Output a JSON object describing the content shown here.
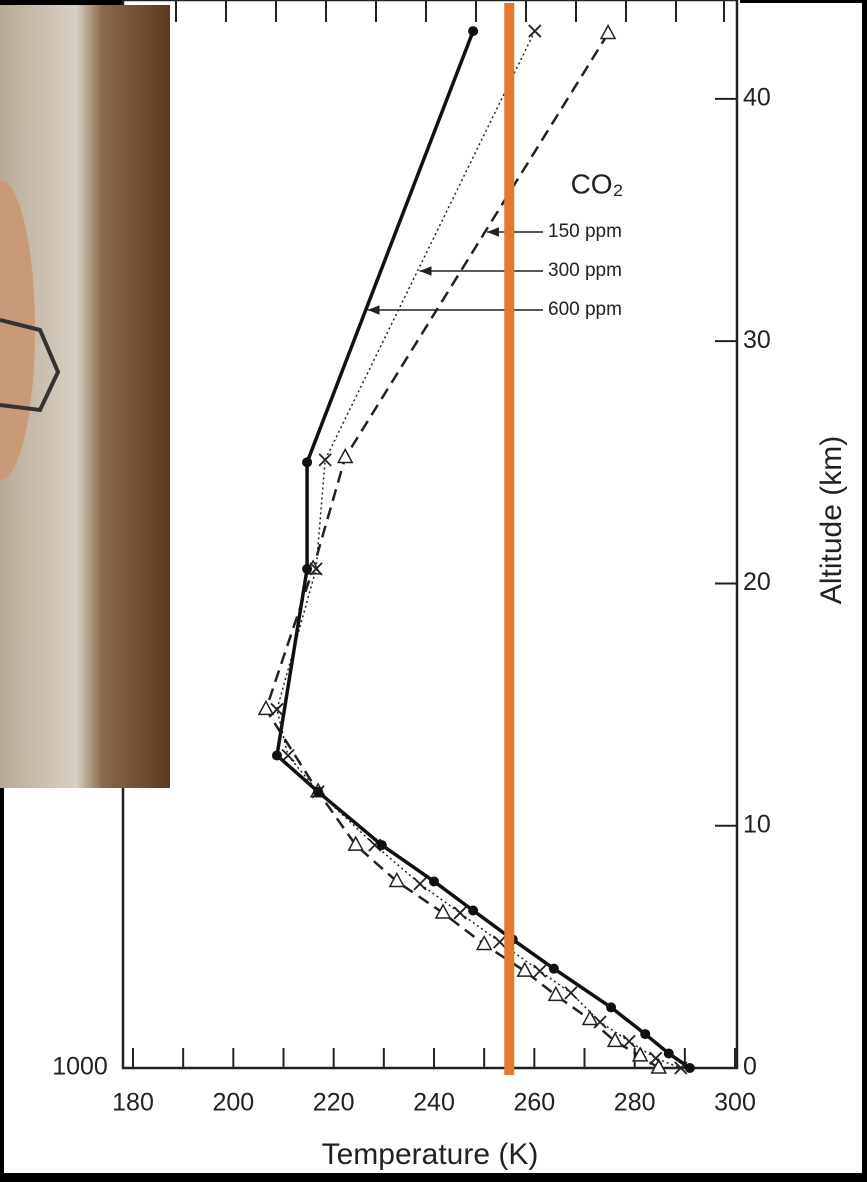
{
  "chart_data": {
    "type": "line",
    "xlabel": "Temperature (K)",
    "ylabel": "Altitude (km)",
    "xlim": [
      180,
      300
    ],
    "xticks": [
      180,
      200,
      220,
      240,
      260,
      280,
      300
    ],
    "ylim": [
      0,
      44
    ],
    "yticks": [
      0,
      10,
      20,
      30,
      40
    ],
    "pressure_label": "1000",
    "legend_title": "CO₂",
    "series": [
      {
        "name": "150 ppm",
        "color": "#222222",
        "x": [
          274.7,
          222.3,
          215.9,
          206.5,
          216.9,
          224.4,
          232.6,
          241.8,
          250.0,
          258.1,
          264.3,
          271.1,
          276.1,
          281.1,
          284.8
        ],
        "values": [
          42.7,
          25.2,
          20.6,
          14.8,
          11.4,
          9.2,
          7.7,
          6.4,
          5.1,
          4.0,
          3.0,
          2.0,
          1.1,
          0.5,
          0
        ]
      },
      {
        "name": "300 ppm",
        "color": "#222222",
        "x": [
          260.1,
          218.3,
          216.5,
          208.7,
          210.9,
          216.9,
          228.2,
          237.2,
          245.2,
          253.1,
          261.1,
          267.3,
          273.1,
          278.9,
          284.2,
          289.2
        ],
        "values": [
          42.8,
          25.1,
          20.6,
          14.8,
          12.9,
          11.4,
          9.2,
          7.6,
          6.4,
          5.2,
          4.0,
          3.1,
          1.9,
          1.1,
          0.4,
          0
        ]
      },
      {
        "name": "600 ppm",
        "color": "#111111",
        "x": [
          247.8,
          214.7,
          214.7,
          208.7,
          216.9,
          229.6,
          240.0,
          247.8,
          255.7,
          263.9,
          275.3,
          282.1,
          286.8,
          291.0
        ],
        "values": [
          42.8,
          25.0,
          20.6,
          12.9,
          11.4,
          9.2,
          7.7,
          6.5,
          5.3,
          4.1,
          2.5,
          1.4,
          0.6,
          0
        ]
      }
    ],
    "reference_line": {
      "value": 255,
      "color": "#e8762d"
    }
  }
}
